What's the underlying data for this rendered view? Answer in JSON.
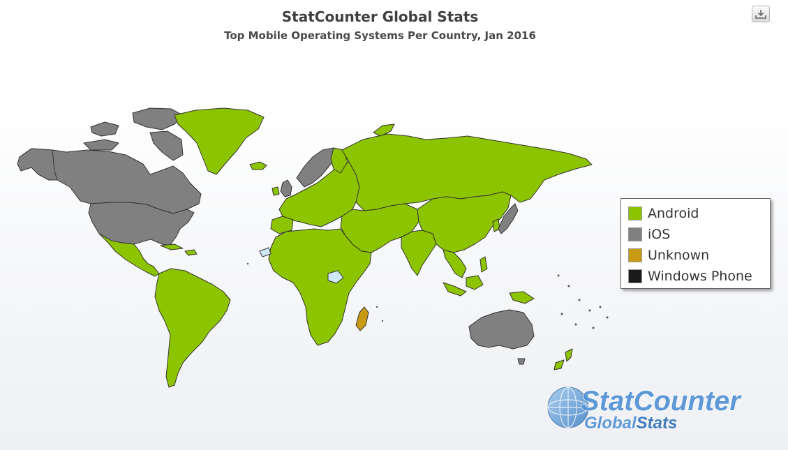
{
  "header": {
    "title": "StatCounter Global Stats",
    "subtitle": "Top Mobile Operating Systems Per Country, Jan 2016"
  },
  "toolbar": {
    "export_icon": "download-icon"
  },
  "colors": {
    "android": "#8dc400",
    "ios": "#808080",
    "unknown": "#c99a14",
    "windows_phone": "#1a1a1a",
    "no_data": "#cfe8f5",
    "border": "#333333"
  },
  "legend": {
    "items": [
      {
        "label": "Android",
        "color": "#8dc400"
      },
      {
        "label": "iOS",
        "color": "#808080"
      },
      {
        "label": "Unknown",
        "color": "#c99a14"
      },
      {
        "label": "Windows Phone",
        "color": "#1a1a1a"
      }
    ]
  },
  "regions": [
    {
      "name": "Canada",
      "os": "iOS"
    },
    {
      "name": "United States",
      "os": "iOS"
    },
    {
      "name": "Greenland",
      "os": "Android"
    },
    {
      "name": "Mexico",
      "os": "Android"
    },
    {
      "name": "South America",
      "os": "Android"
    },
    {
      "name": "Africa",
      "os": "Android"
    },
    {
      "name": "Madagascar",
      "os": "Unknown"
    },
    {
      "name": "Europe",
      "os": "Android"
    },
    {
      "name": "Norway",
      "os": "iOS"
    },
    {
      "name": "Sweden",
      "os": "iOS"
    },
    {
      "name": "United Kingdom",
      "os": "iOS"
    },
    {
      "name": "Russia",
      "os": "Android"
    },
    {
      "name": "Asia",
      "os": "Android"
    },
    {
      "name": "Japan",
      "os": "iOS"
    },
    {
      "name": "Australia",
      "os": "iOS"
    },
    {
      "name": "New Zealand",
      "os": "Android"
    }
  ],
  "logo": {
    "line1": "StatCounter",
    "line2_part1": "Global",
    "line2_part2": "Stats"
  }
}
